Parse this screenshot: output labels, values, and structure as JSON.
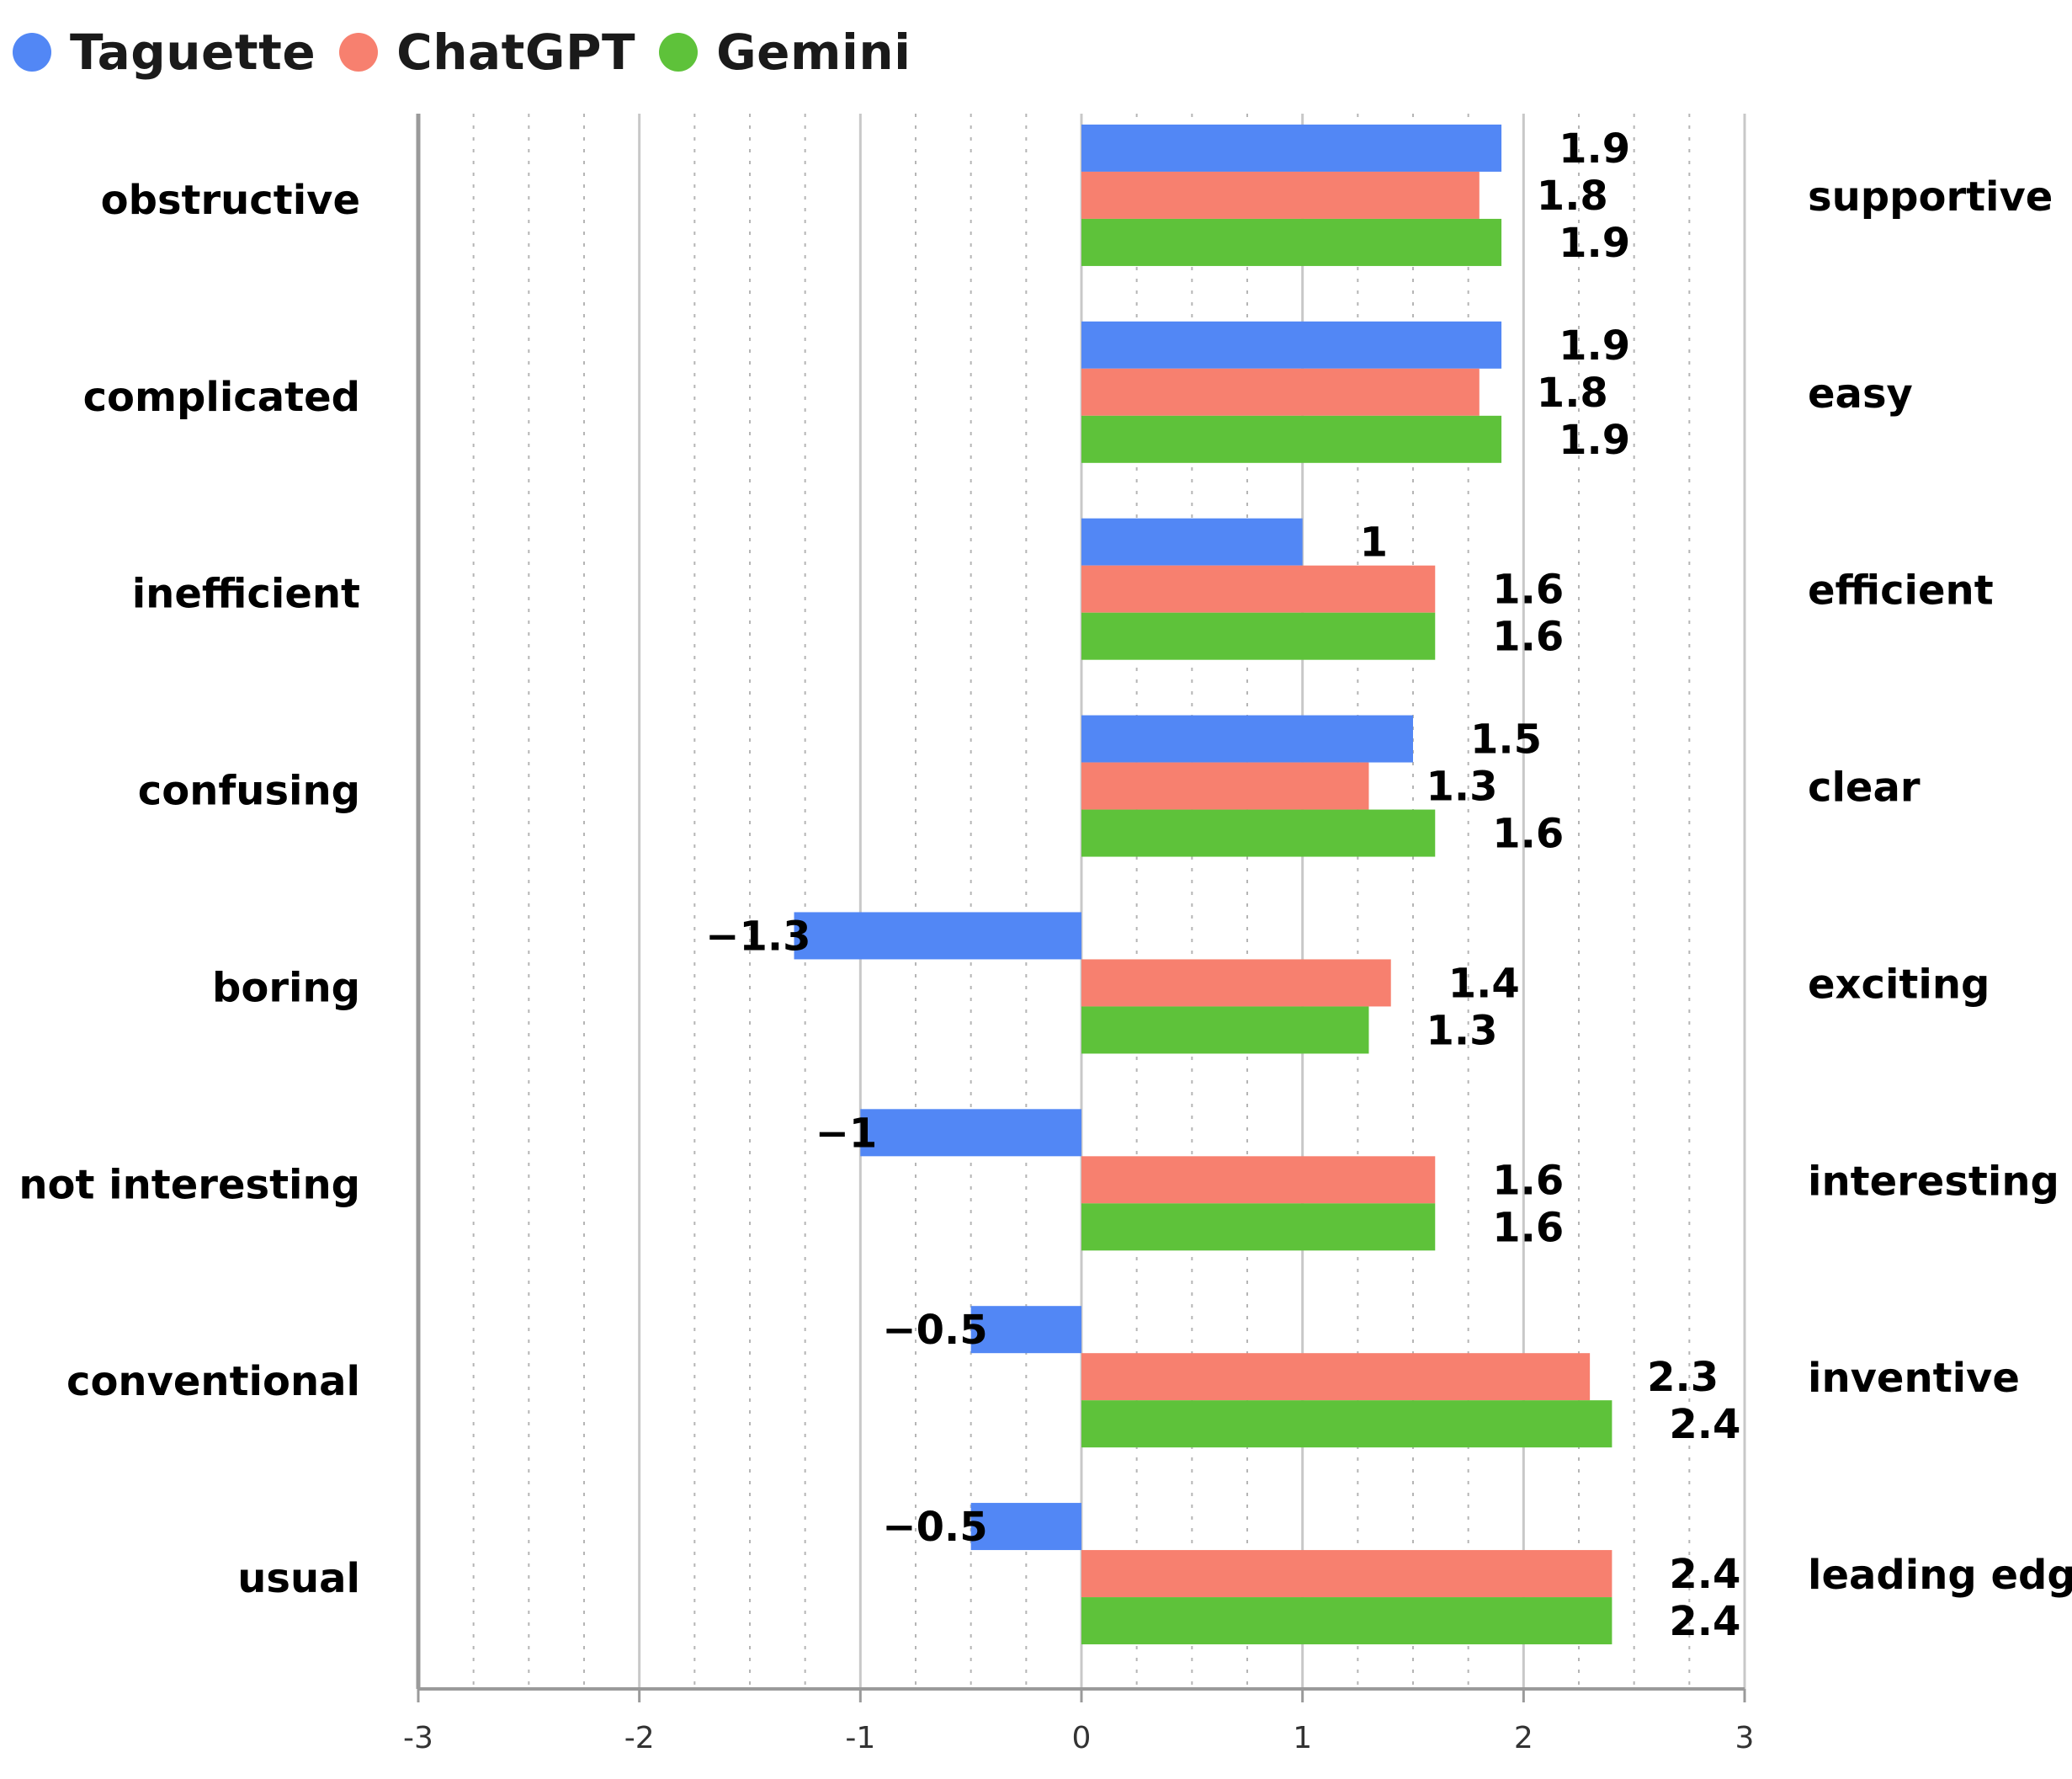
{
  "legend": {
    "items": [
      {
        "label": "Taguette",
        "color": "#5287f5"
      },
      {
        "label": "ChatGPT",
        "color": "#f7806f"
      },
      {
        "label": "Gemini",
        "color": "#5ec23a"
      }
    ]
  },
  "chart_data": {
    "type": "bar",
    "orientation": "horizontal",
    "categories": [
      "obstructive",
      "complicated",
      "inefficient",
      "confusing",
      "boring",
      "not interesting",
      "conventional",
      "usual"
    ],
    "right_labels": [
      "supportive",
      "easy",
      "efficient",
      "clear",
      "exciting",
      "interesting",
      "inventive",
      "leading edge"
    ],
    "series": [
      {
        "name": "Taguette",
        "color": "#5287f5",
        "values": [
          1.9,
          1.9,
          1,
          1.5,
          -1.3,
          -1,
          -0.5,
          -0.5
        ],
        "labels": [
          "1.9",
          "1.9",
          "1",
          "1.5",
          "−1.3",
          "−1",
          "−0.5",
          "−0.5"
        ]
      },
      {
        "name": "ChatGPT",
        "color": "#f7806f",
        "values": [
          1.8,
          1.8,
          1.6,
          1.3,
          1.4,
          1.6,
          2.3,
          2.4
        ],
        "labels": [
          "1.8",
          "1.8",
          "1.6",
          "1.3",
          "1.4",
          "1.6",
          "2.3",
          "2.4"
        ]
      },
      {
        "name": "Gemini",
        "color": "#5ec23a",
        "values": [
          1.9,
          1.9,
          1.6,
          1.6,
          1.3,
          1.6,
          2.4,
          2.4
        ],
        "labels": [
          "1.9",
          "1.9",
          "1.6",
          "1.6",
          "1.3",
          "1.6",
          "2.4",
          "2.4"
        ]
      }
    ],
    "xlim": [
      -3,
      3
    ],
    "xticks": [
      -3,
      -2,
      -1,
      0,
      1,
      2,
      3
    ],
    "xtick_labels": [
      "-3",
      "-2",
      "-1",
      "0",
      "1",
      "2",
      "3"
    ],
    "grid": true,
    "legend_position": "top-left"
  }
}
